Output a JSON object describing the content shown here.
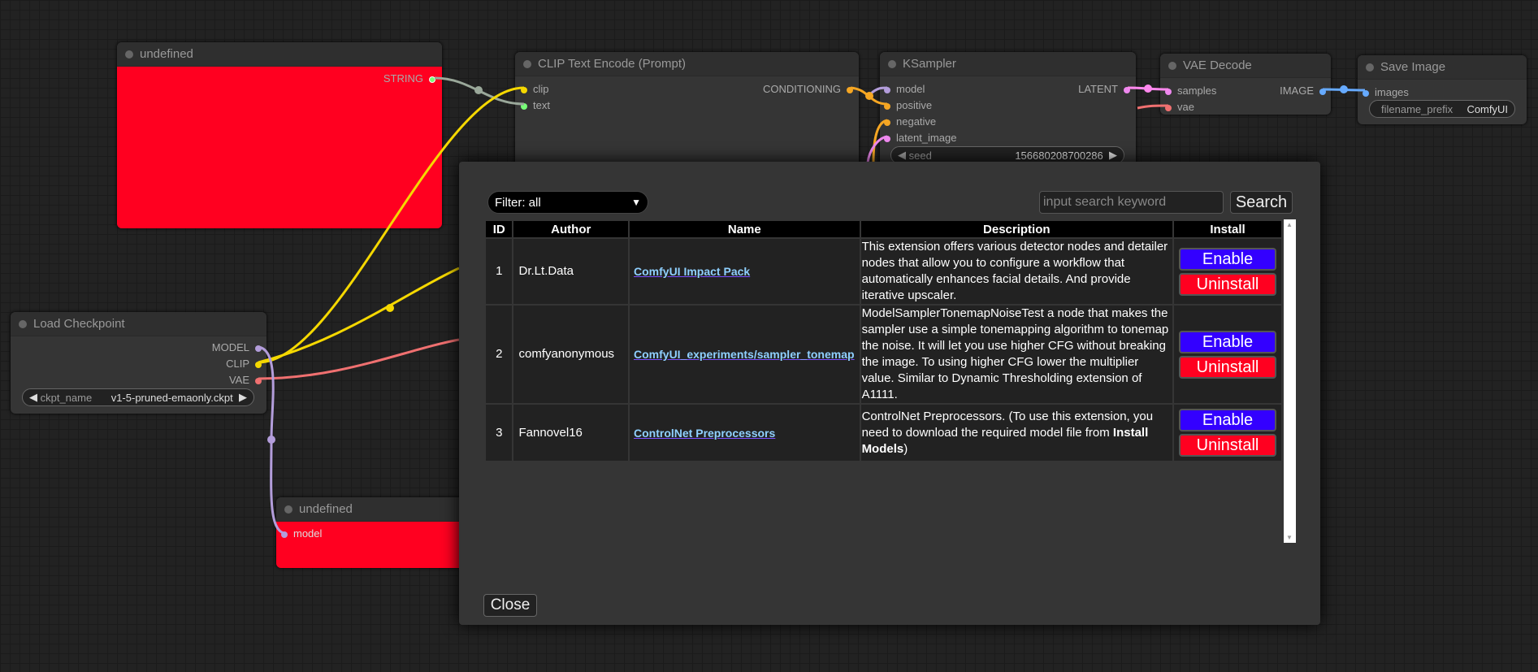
{
  "nodes": {
    "string_node": {
      "title": "undefined",
      "output": "STRING"
    },
    "clip_encode": {
      "title": "CLIP Text Encode (Prompt)",
      "inputs": [
        "clip",
        "text"
      ],
      "output": "CONDITIONING"
    },
    "ksampler": {
      "title": "KSampler",
      "inputs": [
        "model",
        "positive",
        "negative",
        "latent_image"
      ],
      "output": "LATENT",
      "seed_label": "seed",
      "seed_value": "156680208700286"
    },
    "vae_decode": {
      "title": "VAE Decode",
      "inputs": [
        "samples",
        "vae"
      ],
      "output": "IMAGE"
    },
    "save_image": {
      "title": "Save Image",
      "input": "images",
      "widget_label": "filename_prefix",
      "widget_value": "ComfyUI"
    },
    "load_checkpoint": {
      "title": "Load Checkpoint",
      "outputs": [
        "MODEL",
        "CLIP",
        "VAE"
      ],
      "widget_label": "ckpt_name",
      "widget_value": "v1-5-pruned-emaonly.ckpt"
    },
    "model_node": {
      "title": "undefined",
      "input": "model"
    }
  },
  "colors": {
    "error_node": "#ff0020",
    "enable": "#3300ff",
    "uninstall": "#ff0020",
    "link": "#8fd0ff"
  },
  "modal": {
    "filter": "Filter: all",
    "search_placeholder": "input search keyword",
    "search_label": "Search",
    "headers": [
      "ID",
      "Author",
      "Name",
      "Description",
      "Install"
    ],
    "rows": [
      {
        "id": "1",
        "author": "Dr.Lt.Data",
        "name": "ComfyUI Impact Pack",
        "description": "This extension offers various detector nodes and detailer nodes that allow you to configure a workflow that automatically enhances facial details. And provide iterative upscaler.",
        "enable": "Enable",
        "uninstall": "Uninstall"
      },
      {
        "id": "2",
        "author": "comfyanonymous",
        "name": "ComfyUI_experiments/sampler_tonemap",
        "description": "ModelSamplerTonemapNoiseTest a node that makes the sampler use a simple tonemapping algorithm to tonemap the noise. It will let you use higher CFG without breaking the image. To using higher CFG lower the multiplier value. Similar to Dynamic Thresholding extension of A1111.",
        "enable": "Enable",
        "uninstall": "Uninstall"
      },
      {
        "id": "3",
        "author": "Fannovel16",
        "name": "ControlNet Preprocessors",
        "description": "ControlNet Preprocessors. (To use this extension, you need to download the required model file from ",
        "description_bold": "Install Models",
        "description_end": ")",
        "enable": "Enable",
        "uninstall": "Uninstall"
      }
    ],
    "close_label": "Close"
  }
}
